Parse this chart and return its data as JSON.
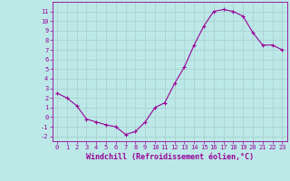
{
  "x": [
    0,
    1,
    2,
    3,
    4,
    5,
    6,
    7,
    8,
    9,
    10,
    11,
    12,
    13,
    14,
    15,
    16,
    17,
    18,
    19,
    20,
    21,
    22,
    23
  ],
  "y": [
    2.5,
    2.0,
    1.2,
    -0.2,
    -0.5,
    -0.8,
    -1.0,
    -1.8,
    -1.5,
    -0.5,
    1.0,
    1.5,
    3.5,
    5.2,
    7.5,
    9.5,
    11.0,
    11.2,
    11.0,
    10.5,
    8.8,
    7.5,
    7.5,
    7.0
  ],
  "color": "#990099",
  "bg_color": "#bce8e8",
  "grid_color": "#aacccc",
  "xlabel": "Windchill (Refroidissement éolien,°C)",
  "xlim": [
    -0.5,
    23.5
  ],
  "ylim": [
    -2.5,
    12.0
  ],
  "yticks": [
    -2,
    -1,
    0,
    1,
    2,
    3,
    4,
    5,
    6,
    7,
    8,
    9,
    10,
    11
  ],
  "xticks": [
    0,
    1,
    2,
    3,
    4,
    5,
    6,
    7,
    8,
    9,
    10,
    11,
    12,
    13,
    14,
    15,
    16,
    17,
    18,
    19,
    20,
    21,
    22,
    23
  ],
  "label_fontsize": 5,
  "xlabel_fontsize": 6
}
